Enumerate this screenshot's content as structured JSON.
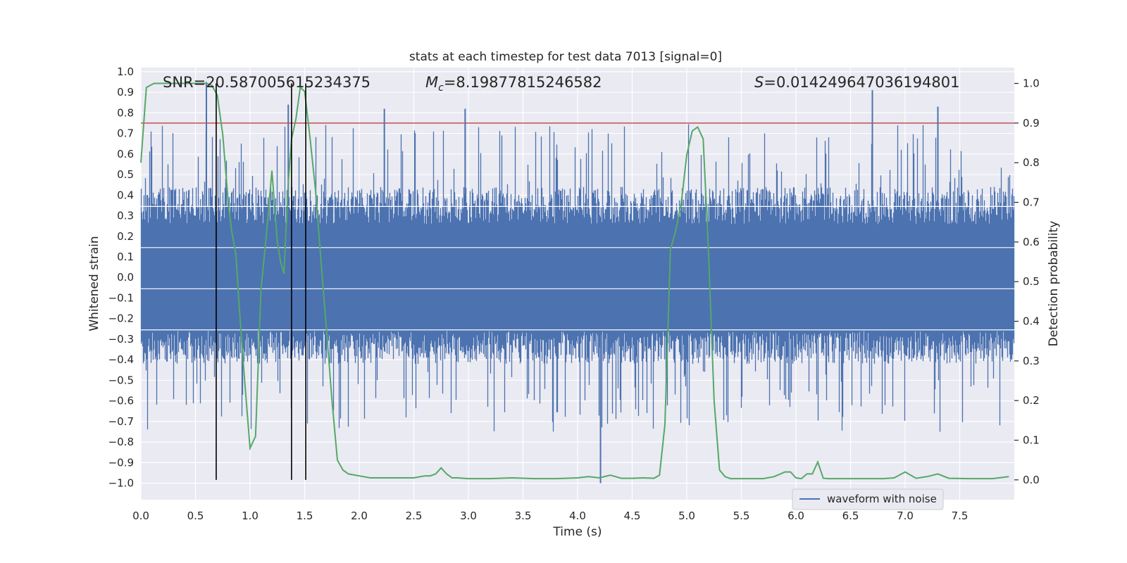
{
  "chart_data": {
    "type": "line",
    "title": "stats at each timestep for test data 7013 [signal=0]",
    "xlabel": "Time (s)",
    "ylabel_left": "Whitened strain",
    "ylabel_right": "Detection probability",
    "xlim": [
      0,
      8
    ],
    "ylim_left": [
      -1.08,
      1.02
    ],
    "ylim_right": [
      -0.05,
      1.04
    ],
    "x_ticks": [
      0.0,
      0.5,
      1.0,
      1.5,
      2.0,
      2.5,
      3.0,
      3.5,
      4.0,
      4.5,
      5.0,
      5.5,
      6.0,
      6.5,
      7.0,
      7.5
    ],
    "x_tick_labels": [
      "0.0",
      "0.5",
      "1.0",
      "1.5",
      "2.0",
      "2.5",
      "3.0",
      "3.5",
      "4.0",
      "4.5",
      "5.0",
      "5.5",
      "6.0",
      "6.5",
      "7.0",
      "7.5"
    ],
    "y_left_ticks": [
      1.0,
      0.9,
      0.8,
      0.7,
      0.6,
      0.5,
      0.4,
      0.3,
      0.2,
      0.1,
      0.0,
      -0.1,
      -0.2,
      -0.3,
      -0.4,
      -0.5,
      -0.6,
      -0.7,
      -0.8,
      -0.9,
      -1.0
    ],
    "y_left_tick_labels": [
      "1.0",
      "0.9",
      "0.8",
      "0.7",
      "0.6",
      "0.5",
      "0.4",
      "0.3",
      "0.2",
      "0.1",
      "0.0",
      "−0.1",
      "−0.2",
      "−0.3",
      "−0.4",
      "−0.5",
      "−0.6",
      "−0.7",
      "−0.8",
      "−0.9",
      "−1.0"
    ],
    "y_right_ticks": [
      1.0,
      0.9,
      0.8,
      0.7,
      0.6,
      0.5,
      0.4,
      0.3,
      0.2,
      0.1,
      0.0
    ],
    "y_right_tick_labels": [
      "1.0",
      "0.9",
      "0.8",
      "0.7",
      "0.6",
      "0.5",
      "0.4",
      "0.3",
      "0.2",
      "0.1",
      "0.0"
    ],
    "grid": true,
    "annotations": {
      "snr": "SNR=20.587005615234375",
      "mc_symbol": "M",
      "mc_sub": "c",
      "mc_value": "=8.19877815246582",
      "s_symbol": "S",
      "s_value": "=0.014249647036194801"
    },
    "threshold": {
      "value": 0.9,
      "axis": "right",
      "color": "#c44e52"
    },
    "vertical_lines": [
      0.69,
      1.38,
      1.51
    ],
    "series": [
      {
        "name": "waveform with noise",
        "axis": "left",
        "color": "#4c72b0",
        "envelope_seed": 7013,
        "notable_peaks": [
          {
            "x": 0.6,
            "y": 0.95
          },
          {
            "x": 2.97,
            "y": 0.82
          },
          {
            "x": 4.21,
            "y": -1.0
          },
          {
            "x": 6.7,
            "y": 0.91
          },
          {
            "x": 7.3,
            "y": 0.83
          },
          {
            "x": 1.35,
            "y": 0.84
          },
          {
            "x": 2.23,
            "y": 0.82
          }
        ]
      },
      {
        "name": "Detection probability",
        "axis": "right",
        "color": "#55a868",
        "x": [
          0.0,
          0.05,
          0.12,
          0.2,
          0.3,
          0.4,
          0.5,
          0.6,
          0.65,
          0.7,
          0.75,
          0.8,
          0.83,
          0.87,
          0.9,
          0.95,
          1.0,
          1.05,
          1.1,
          1.15,
          1.2,
          1.25,
          1.28,
          1.31,
          1.35,
          1.38,
          1.42,
          1.46,
          1.5,
          1.55,
          1.6,
          1.65,
          1.7,
          1.75,
          1.8,
          1.85,
          1.9,
          2.0,
          2.1,
          2.2,
          2.3,
          2.4,
          2.5,
          2.6,
          2.65,
          2.7,
          2.75,
          2.8,
          2.85,
          2.9,
          3.0,
          3.2,
          3.4,
          3.6,
          3.8,
          4.0,
          4.1,
          4.2,
          4.3,
          4.4,
          4.5,
          4.6,
          4.7,
          4.75,
          4.8,
          4.85,
          4.9,
          4.95,
          5.0,
          5.05,
          5.1,
          5.15,
          5.2,
          5.25,
          5.3,
          5.35,
          5.4,
          5.5,
          5.7,
          5.8,
          5.9,
          5.95,
          6.0,
          6.05,
          6.1,
          6.15,
          6.2,
          6.25,
          6.3,
          6.4,
          6.6,
          6.8,
          6.9,
          7.0,
          7.1,
          7.2,
          7.3,
          7.4,
          7.6,
          7.8,
          7.95
        ],
        "y": [
          0.8,
          0.99,
          1.0,
          1.0,
          1.0,
          1.0,
          1.0,
          1.0,
          0.995,
          0.97,
          0.87,
          0.7,
          0.63,
          0.57,
          0.44,
          0.25,
          0.08,
          0.11,
          0.48,
          0.62,
          0.78,
          0.6,
          0.55,
          0.52,
          0.75,
          0.86,
          0.91,
          0.99,
          0.98,
          0.86,
          0.73,
          0.55,
          0.38,
          0.2,
          0.05,
          0.025,
          0.015,
          0.01,
          0.005,
          0.005,
          0.005,
          0.005,
          0.005,
          0.01,
          0.01,
          0.015,
          0.03,
          0.015,
          0.005,
          0.005,
          0.003,
          0.003,
          0.005,
          0.003,
          0.003,
          0.005,
          0.008,
          0.005,
          0.012,
          0.004,
          0.004,
          0.005,
          0.004,
          0.012,
          0.14,
          0.58,
          0.63,
          0.7,
          0.82,
          0.88,
          0.89,
          0.86,
          0.57,
          0.2,
          0.025,
          0.008,
          0.003,
          0.003,
          0.003,
          0.008,
          0.02,
          0.02,
          0.005,
          0.003,
          0.015,
          0.015,
          0.045,
          0.004,
          0.003,
          0.003,
          0.003,
          0.003,
          0.005,
          0.02,
          0.004,
          0.008,
          0.015,
          0.004,
          0.003,
          0.003,
          0.008
        ]
      }
    ]
  }
}
